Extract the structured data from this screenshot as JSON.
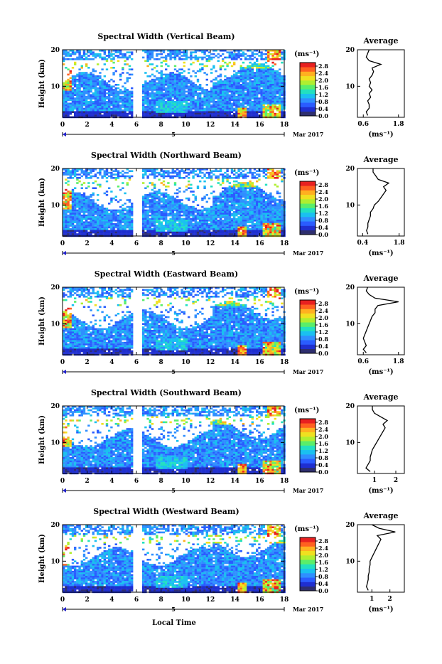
{
  "page": {
    "xlabel": "Local Time",
    "date_label": "Mar 2017",
    "day_label": "5"
  },
  "colorbar": {
    "unit": "(ms⁻¹)",
    "ticks": [
      "2.8",
      "2.4",
      "2.0",
      "1.6",
      "1.2",
      "0.8",
      "0.4",
      "0.0"
    ],
    "range": [
      0,
      3.0
    ],
    "colors": [
      "#2e2e6e",
      "#1f2fd0",
      "#2a5cff",
      "#2f8fff",
      "#1ac0f0",
      "#22e0c0",
      "#5aee6a",
      "#b0ee30",
      "#f0e020",
      "#ffb020",
      "#ff6020",
      "#e82020"
    ]
  },
  "chart_data": [
    {
      "type": "heatmap",
      "title": "Spectral Width (Vertical Beam)",
      "ylabel": "Height (km)",
      "xlim": [
        0,
        18
      ],
      "ylim": [
        1.5,
        20
      ],
      "x_ticks": [
        "0",
        "2",
        "4",
        "6",
        "8",
        "10",
        "12",
        "14",
        "16",
        "18"
      ],
      "y_ticks": [
        "20",
        "10"
      ],
      "avg": {
        "title": "Average",
        "xlabel": "(ms⁻¹)",
        "x_ticks": [
          "0.6",
          "1.8"
        ],
        "x_tick_values": [
          0.6,
          1.8
        ],
        "xlim": [
          0.4,
          2.0
        ],
        "heights": [
          2,
          3,
          4,
          5,
          6,
          7,
          8,
          9,
          10,
          11,
          12,
          13,
          14,
          15,
          16,
          17,
          18,
          19,
          20
        ],
        "values": [
          0.75,
          0.7,
          0.8,
          0.8,
          0.75,
          0.85,
          0.8,
          0.9,
          0.8,
          0.85,
          0.8,
          0.9,
          0.95,
          0.9,
          1.2,
          0.8,
          0.7,
          0.75,
          0.8
        ]
      }
    },
    {
      "type": "heatmap",
      "title": "Spectral Width (Northward Beam)",
      "ylabel": "Height (km)",
      "xlim": [
        0,
        18
      ],
      "ylim": [
        1.5,
        20
      ],
      "x_ticks": [
        "0",
        "2",
        "4",
        "6",
        "8",
        "10",
        "12",
        "14",
        "16",
        "18"
      ],
      "y_ticks": [
        "20",
        "10"
      ],
      "avg": {
        "title": "Average",
        "xlabel": "(ms⁻¹)",
        "x_ticks": [
          "0.4",
          "1.8"
        ],
        "x_tick_values": [
          0.4,
          1.8
        ],
        "xlim": [
          0.2,
          2.0
        ],
        "heights": [
          2,
          3,
          4,
          5,
          6,
          7,
          8,
          9,
          10,
          11,
          12,
          13,
          14,
          15,
          16,
          17,
          18,
          19,
          20
        ],
        "values": [
          0.6,
          0.55,
          0.6,
          0.6,
          0.65,
          0.7,
          0.7,
          0.8,
          0.85,
          1.0,
          1.1,
          1.2,
          1.3,
          1.2,
          1.4,
          1.0,
          0.9,
          0.8,
          0.8
        ]
      }
    },
    {
      "type": "heatmap",
      "title": "Spectral Width (Eastward Beam)",
      "ylabel": "Height (km)",
      "xlim": [
        0,
        18
      ],
      "ylim": [
        1.5,
        20
      ],
      "x_ticks": [
        "0",
        "2",
        "4",
        "6",
        "8",
        "10",
        "12",
        "14",
        "16",
        "18"
      ],
      "y_ticks": [
        "20",
        "10"
      ],
      "avg": {
        "title": "Average",
        "xlabel": "(ms⁻¹)",
        "x_ticks": [
          "0.6",
          "1.8"
        ],
        "x_tick_values": [
          0.6,
          1.8
        ],
        "xlim": [
          0.4,
          2.0
        ],
        "heights": [
          2,
          3,
          4,
          5,
          6,
          7,
          8,
          9,
          10,
          11,
          12,
          13,
          14,
          15,
          16,
          17,
          18,
          19,
          20
        ],
        "values": [
          0.7,
          0.6,
          0.7,
          0.65,
          0.6,
          0.65,
          0.7,
          0.75,
          0.8,
          0.85,
          0.9,
          1.0,
          1.0,
          1.1,
          1.8,
          1.0,
          0.8,
          0.7,
          0.75
        ]
      }
    },
    {
      "type": "heatmap",
      "title": "Spectral Width (Southward Beam)",
      "ylabel": "Height (km)",
      "xlim": [
        0,
        18
      ],
      "ylim": [
        1.5,
        20
      ],
      "x_ticks": [
        "0",
        "2",
        "4",
        "6",
        "8",
        "10",
        "12",
        "14",
        "16",
        "18"
      ],
      "y_ticks": [
        "20",
        "10"
      ],
      "avg": {
        "title": "Average",
        "xlabel": "(ms⁻¹)",
        "x_ticks": [
          "1",
          "2"
        ],
        "x_tick_values": [
          1,
          2
        ],
        "xlim": [
          0.2,
          2.4
        ],
        "heights": [
          2,
          3,
          4,
          5,
          6,
          7,
          8,
          9,
          10,
          11,
          12,
          13,
          14,
          15,
          16,
          17,
          18,
          19,
          20
        ],
        "values": [
          0.8,
          0.6,
          0.7,
          0.8,
          0.8,
          0.85,
          0.9,
          1.0,
          1.1,
          1.2,
          1.3,
          1.4,
          1.5,
          1.4,
          1.6,
          1.3,
          1.0,
          0.9,
          0.9
        ]
      }
    },
    {
      "type": "heatmap",
      "title": "Spectral Width (Westward Beam)",
      "ylabel": "Height (km)",
      "xlim": [
        0,
        18
      ],
      "ylim": [
        1.5,
        20
      ],
      "x_ticks": [
        "0",
        "2",
        "4",
        "6",
        "8",
        "10",
        "12",
        "14",
        "16",
        "18"
      ],
      "y_ticks": [
        "20",
        "10"
      ],
      "avg": {
        "title": "Average",
        "xlabel": "(ms⁻¹)",
        "x_ticks": [
          "1",
          "2"
        ],
        "x_tick_values": [
          1,
          2
        ],
        "xlim": [
          0.2,
          2.8
        ],
        "heights": [
          2,
          3,
          4,
          5,
          6,
          7,
          8,
          9,
          10,
          11,
          12,
          13,
          14,
          15,
          16,
          17,
          18,
          19,
          20
        ],
        "values": [
          0.8,
          0.7,
          0.75,
          0.8,
          0.8,
          0.85,
          0.85,
          0.9,
          0.9,
          1.0,
          1.1,
          1.2,
          1.3,
          1.4,
          1.5,
          1.3,
          2.3,
          1.4,
          1.0
        ]
      }
    }
  ]
}
